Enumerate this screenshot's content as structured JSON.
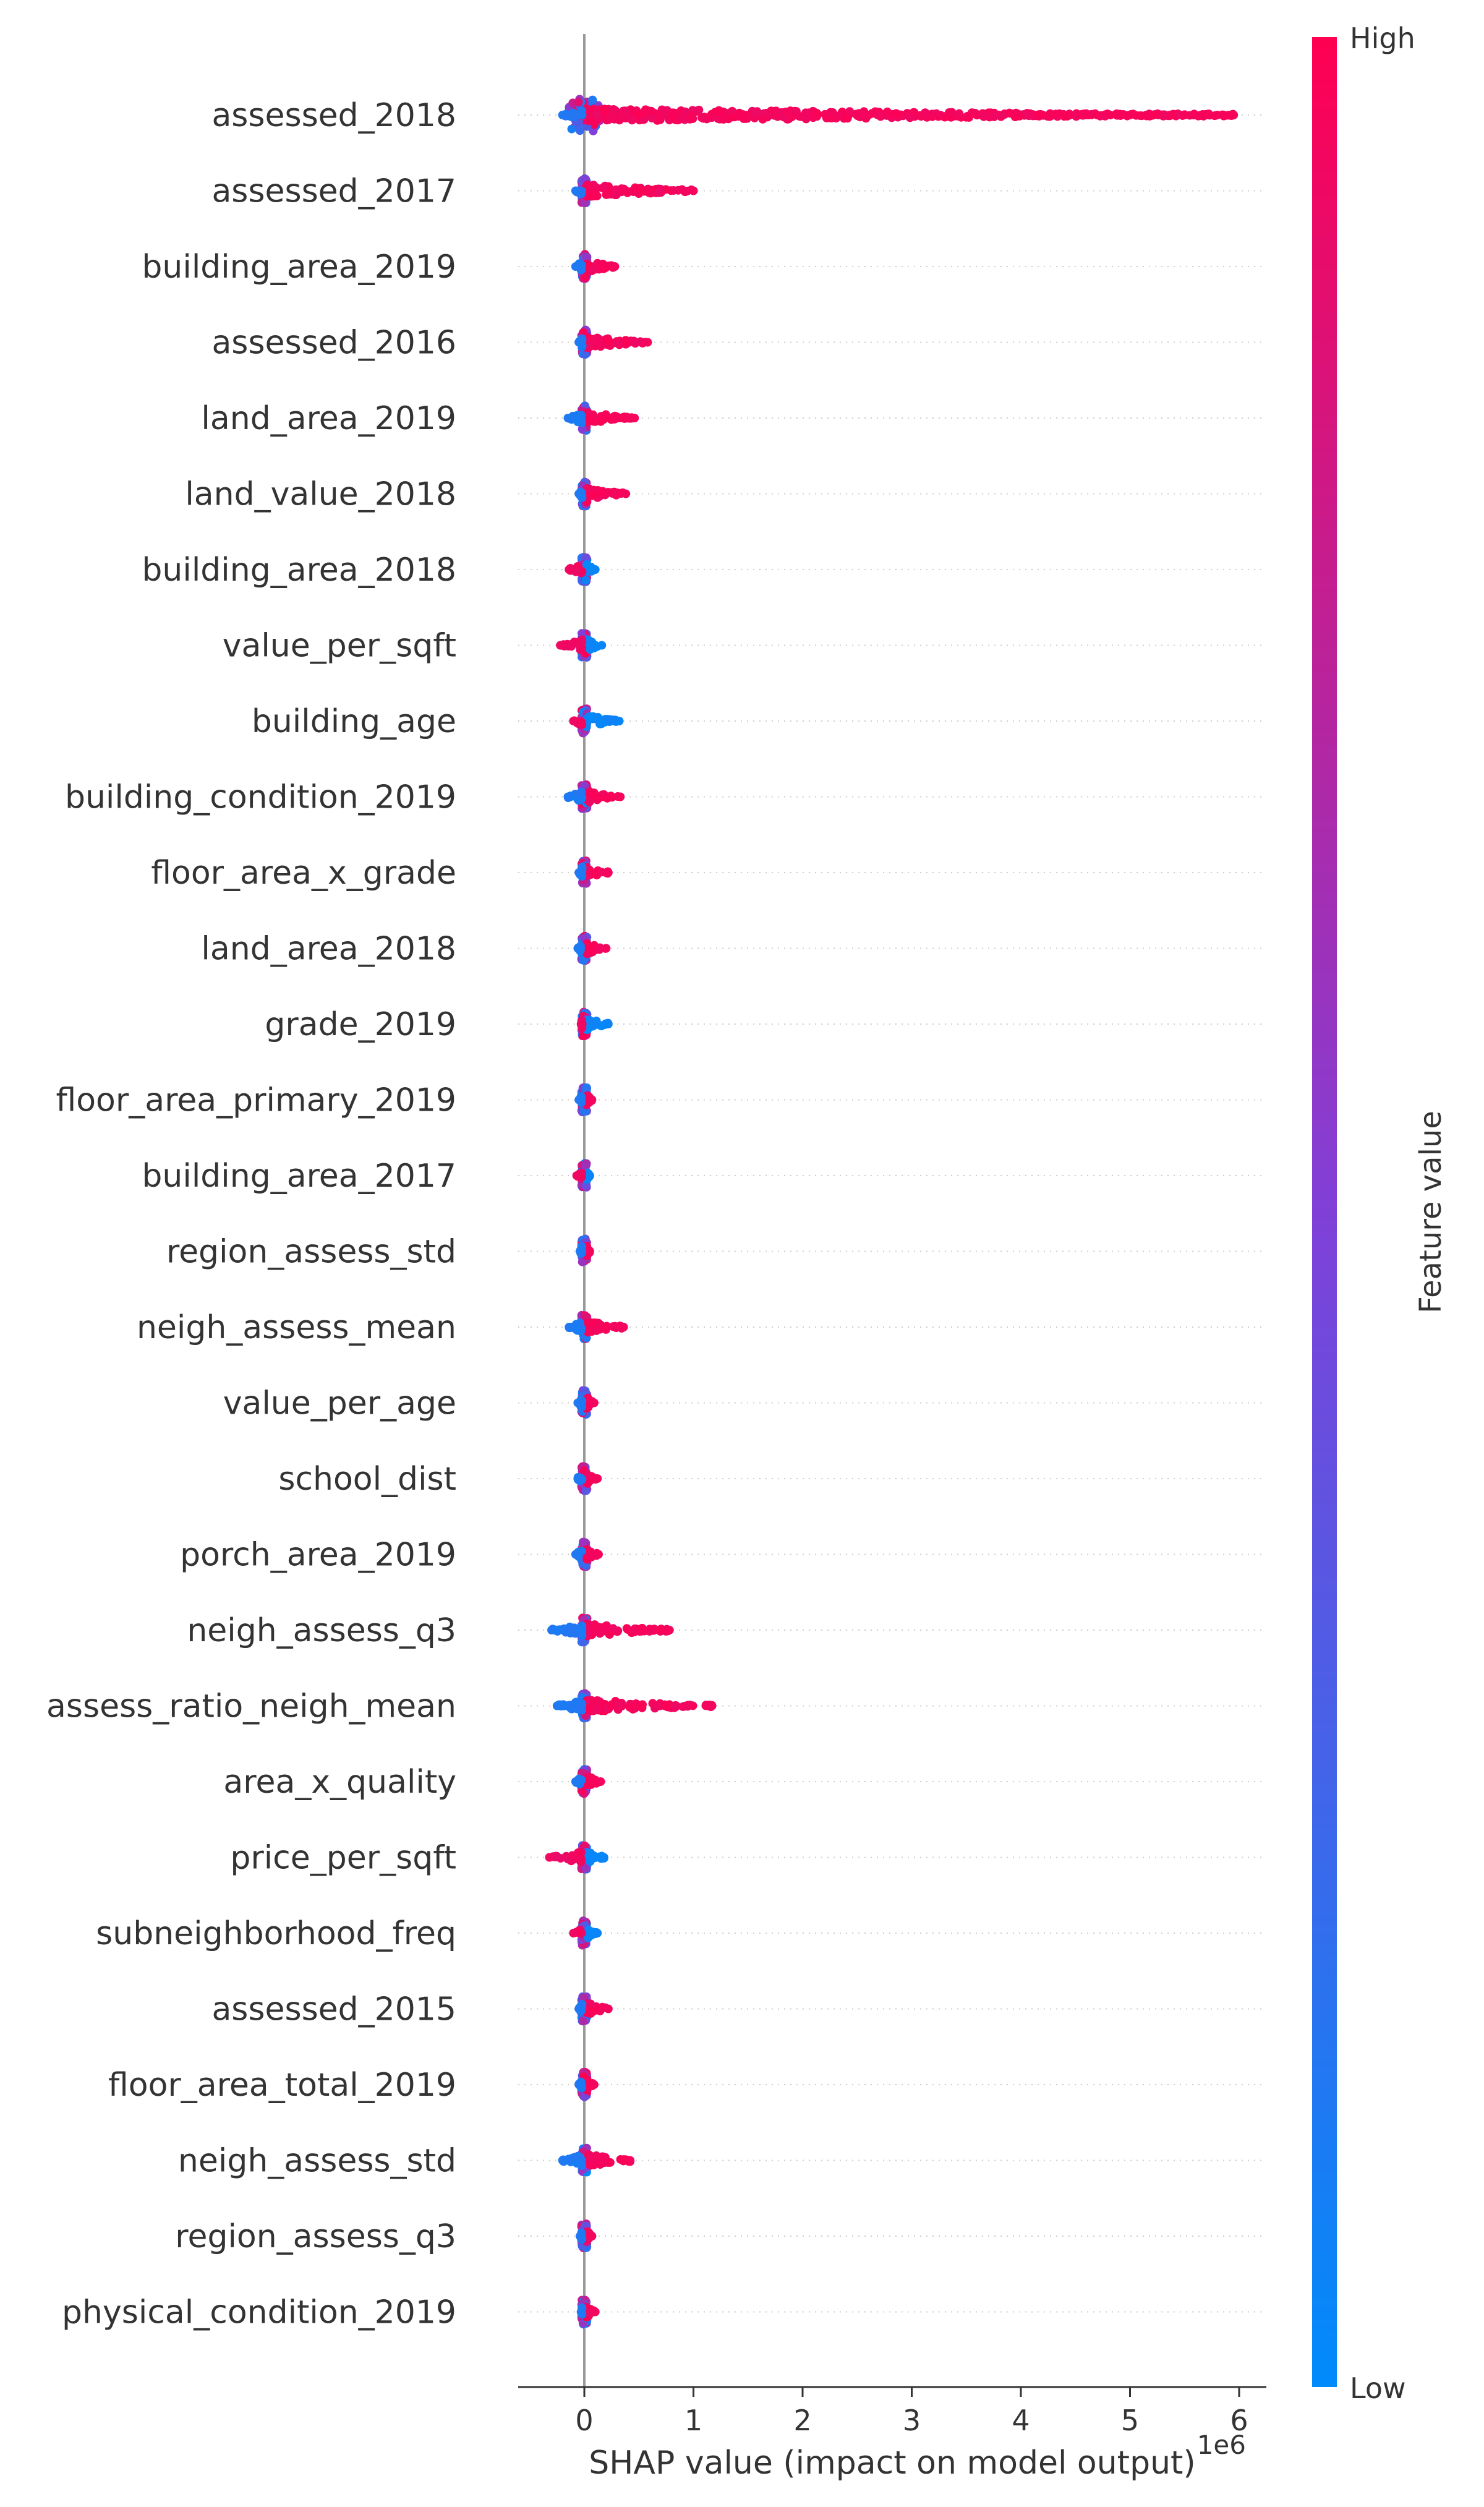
{
  "chart_data": {
    "type": "scatter",
    "subtype": "shap-beeswarm",
    "xlabel": "SHAP value (impact on model output)",
    "x_offset_label": "1e6",
    "xlim": [
      -0.6,
      6.3
    ],
    "xticks": [
      "0",
      "1",
      "2",
      "3",
      "4",
      "5",
      "6"
    ],
    "xtick_values": [
      0,
      1,
      2,
      3,
      4,
      5,
      6
    ],
    "grid": false,
    "colorbar": {
      "title": "Feature value",
      "high_label": "High",
      "low_label": "Low",
      "low_color": "#008bfb",
      "high_color": "#ff0052",
      "mid_color": "#b300a8"
    },
    "features": [
      {
        "name": "assessed_2018",
        "min": -0.2,
        "max": 5.95,
        "high_max": 5.95,
        "low_min": -0.2
      },
      {
        "name": "assessed_2017",
        "min": -0.08,
        "max": 1.0,
        "high_max": 1.0,
        "low_min": -0.08
      },
      {
        "name": "building_area_2019",
        "min": -0.1,
        "max": 0.28,
        "high_max": 0.28,
        "low_min": -0.08
      },
      {
        "name": "assessed_2016",
        "min": -0.05,
        "max": 0.58,
        "high_max": 0.58,
        "low_min": -0.05
      },
      {
        "name": "land_area_2019",
        "min": -0.15,
        "max": 0.46,
        "high_max": 0.46,
        "low_min": -0.15
      },
      {
        "name": "land_value_2018",
        "min": -0.1,
        "max": 0.38,
        "high_max": 0.38,
        "low_min": -0.05
      },
      {
        "name": "building_area_2018",
        "min": -0.14,
        "max": 0.1,
        "high_min": -0.14,
        "low_max": 0.1
      },
      {
        "name": "value_per_sqft",
        "min": -0.22,
        "max": 0.16,
        "high_min": -0.22,
        "low_max": 0.16
      },
      {
        "name": "building_age",
        "min": -0.12,
        "max": 0.32,
        "high_min": -0.1,
        "low_max": 0.32
      },
      {
        "name": "building_condition_2019",
        "min": -0.15,
        "max": 0.33,
        "high_max": 0.33,
        "low_min": -0.15
      },
      {
        "name": "floor_area_x_grade",
        "min": -0.05,
        "max": 0.22,
        "high_max": 0.22,
        "low_min": -0.05
      },
      {
        "name": "land_area_2018",
        "min": -0.1,
        "max": 0.2,
        "high_max": 0.2,
        "low_min": -0.06
      },
      {
        "name": "grade_2019",
        "min": -0.05,
        "max": 0.22,
        "high_min": -0.03,
        "low_max": 0.22
      },
      {
        "name": "floor_area_primary_2019",
        "min": -0.05,
        "max": 0.07,
        "high_max": 0.07,
        "low_min": -0.05
      },
      {
        "name": "building_area_2017",
        "min": -0.07,
        "max": 0.05,
        "high_min": -0.07,
        "low_max": 0.05
      },
      {
        "name": "region_assess_std",
        "min": -0.04,
        "max": 0.05,
        "high_max": 0.05,
        "low_min": -0.04
      },
      {
        "name": "neigh_assess_mean",
        "min": -0.14,
        "max": 0.36,
        "high_max": 0.36,
        "low_min": -0.14
      },
      {
        "name": "value_per_age",
        "min": -0.1,
        "max": 0.09,
        "high_max": 0.09,
        "low_min": -0.06
      },
      {
        "name": "school_dist",
        "min": -0.08,
        "max": 0.12,
        "high_max": 0.12,
        "low_min": -0.06
      },
      {
        "name": "porch_area_2019",
        "min": -0.1,
        "max": 0.13,
        "high_max": 0.13,
        "low_min": -0.08
      },
      {
        "name": "neigh_assess_q3",
        "min": -0.3,
        "max": 0.78,
        "high_max": 0.78,
        "low_min": -0.3
      },
      {
        "name": "assess_ratio_neigh_mean",
        "min": -0.25,
        "max": 1.17,
        "high_max": 1.17,
        "low_min": -0.25
      },
      {
        "name": "area_x_quality",
        "min": -0.1,
        "max": 0.15,
        "high_max": 0.15,
        "low_min": -0.08
      },
      {
        "name": "price_per_sqft",
        "min": -0.32,
        "max": 0.18,
        "high_min": -0.32,
        "low_max": 0.18
      },
      {
        "name": "subneighborhood_freq",
        "min": -0.14,
        "max": 0.12,
        "high_min": -0.1,
        "low_max": 0.12
      },
      {
        "name": "assessed_2015",
        "min": -0.05,
        "max": 0.22,
        "high_max": 0.22,
        "low_min": -0.05
      },
      {
        "name": "floor_area_total_2019",
        "min": -0.05,
        "max": 0.09,
        "high_max": 0.09,
        "low_min": -0.05
      },
      {
        "name": "neigh_assess_std",
        "min": -0.22,
        "max": 0.42,
        "high_max": 0.42,
        "low_min": -0.2
      },
      {
        "name": "region_assess_q3",
        "min": -0.04,
        "max": 0.07,
        "high_max": 0.07,
        "low_min": -0.04
      },
      {
        "name": "physical_condition_2019",
        "min": -0.05,
        "max": 0.1,
        "high_max": 0.1,
        "low_min": -0.03
      }
    ]
  }
}
